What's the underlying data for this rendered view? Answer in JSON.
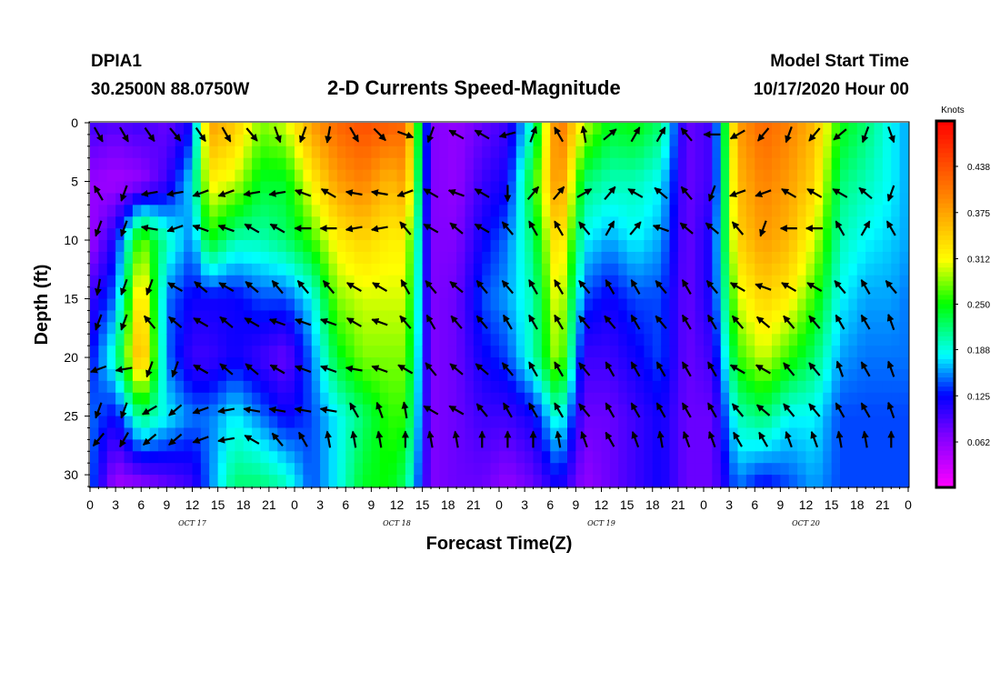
{
  "header": {
    "station_id": "DPIA1",
    "station_coords": "30.2500N 88.0750W",
    "title": "2-D Currents Speed-Magnitude",
    "model_label": "Model Start Time",
    "model_time": "10/17/2020 Hour 00"
  },
  "chart_data": {
    "type": "heatmap",
    "title": "2-D Currents Speed-Magnitude",
    "xlabel": "Forecast Time(Z)",
    "ylabel": "Depth (ft)",
    "x_tick_labels": [
      "0",
      "3",
      "6",
      "9",
      "12",
      "15",
      "18",
      "21",
      "0",
      "3",
      "6",
      "9",
      "12",
      "15",
      "18",
      "21",
      "0",
      "3",
      "6",
      "9",
      "12",
      "15",
      "18",
      "21",
      "0",
      "3",
      "6",
      "9",
      "12",
      "15",
      "18",
      "21",
      "0"
    ],
    "day_labels": [
      "OCT 17",
      "OCT 18",
      "OCT 19",
      "OCT 20"
    ],
    "xlim_hours": [
      0,
      96
    ],
    "y_tick_labels": [
      "0",
      "5",
      "10",
      "15",
      "20",
      "25",
      "30"
    ],
    "ylim": [
      0,
      31
    ],
    "y_inverted": true,
    "colorbar": {
      "unit": "Knots",
      "ticks": [
        "0.062",
        "0.125",
        "0.188",
        "0.250",
        "0.312",
        "0.375",
        "0.438"
      ],
      "range": [
        0,
        0.5
      ]
    },
    "speed_profiles_by_hour": [
      {
        "hour": 0,
        "speed": [
          0.1,
          0.06,
          0.05,
          0.1,
          0.12,
          0.15,
          0.15
        ]
      },
      {
        "hour": 3,
        "speed": [
          0.09,
          0.05,
          0.12,
          0.15,
          0.2,
          0.12,
          0.05
        ]
      },
      {
        "hour": 6,
        "speed": [
          0.1,
          0.06,
          0.28,
          0.35,
          0.38,
          0.22,
          0.06
        ]
      },
      {
        "hour": 9,
        "speed": [
          0.08,
          0.1,
          0.2,
          0.15,
          0.15,
          0.18,
          0.08
        ]
      },
      {
        "hour": 12,
        "speed": [
          0.12,
          0.18,
          0.15,
          0.12,
          0.1,
          0.15,
          0.1
        ]
      },
      {
        "hour": 14,
        "speed": [
          0.38,
          0.32,
          0.25,
          0.12,
          0.1,
          0.15,
          0.15
        ]
      },
      {
        "hour": 17,
        "speed": [
          0.35,
          0.3,
          0.2,
          0.12,
          0.12,
          0.18,
          0.22
        ]
      },
      {
        "hour": 20,
        "speed": [
          0.28,
          0.24,
          0.2,
          0.14,
          0.1,
          0.15,
          0.22
        ]
      },
      {
        "hour": 23,
        "speed": [
          0.3,
          0.24,
          0.22,
          0.14,
          0.08,
          0.12,
          0.2
        ]
      },
      {
        "hour": 26,
        "speed": [
          0.38,
          0.32,
          0.26,
          0.18,
          0.15,
          0.14,
          0.14
        ]
      },
      {
        "hour": 29,
        "speed": [
          0.42,
          0.38,
          0.32,
          0.28,
          0.24,
          0.18,
          0.18
        ]
      },
      {
        "hour": 32,
        "speed": [
          0.44,
          0.4,
          0.34,
          0.3,
          0.28,
          0.22,
          0.24
        ]
      },
      {
        "hour": 35,
        "speed": [
          0.43,
          0.36,
          0.32,
          0.3,
          0.28,
          0.26,
          0.25
        ]
      },
      {
        "hour": 37,
        "speed": [
          0.42,
          0.38,
          0.32,
          0.3,
          0.28,
          0.26,
          0.22
        ]
      },
      {
        "hour": 40,
        "speed": [
          0.07,
          0.07,
          0.07,
          0.07,
          0.07,
          0.07,
          0.07
        ]
      },
      {
        "hour": 43,
        "speed": [
          0.06,
          0.06,
          0.07,
          0.08,
          0.08,
          0.08,
          0.08
        ]
      },
      {
        "hour": 46,
        "speed": [
          0.08,
          0.1,
          0.12,
          0.14,
          0.12,
          0.1,
          0.08
        ]
      },
      {
        "hour": 49,
        "speed": [
          0.1,
          0.12,
          0.15,
          0.16,
          0.14,
          0.1,
          0.06
        ]
      },
      {
        "hour": 52,
        "speed": [
          0.2,
          0.25,
          0.22,
          0.2,
          0.2,
          0.12,
          0.08
        ]
      },
      {
        "hour": 55,
        "speed": [
          0.42,
          0.4,
          0.35,
          0.32,
          0.3,
          0.2,
          0.12
        ]
      },
      {
        "hour": 58,
        "speed": [
          0.3,
          0.22,
          0.18,
          0.14,
          0.1,
          0.08,
          0.06
        ]
      },
      {
        "hour": 61,
        "speed": [
          0.24,
          0.2,
          0.16,
          0.12,
          0.1,
          0.08,
          0.08
        ]
      },
      {
        "hour": 64,
        "speed": [
          0.25,
          0.2,
          0.18,
          0.14,
          0.12,
          0.1,
          0.1
        ]
      },
      {
        "hour": 67,
        "speed": [
          0.22,
          0.18,
          0.16,
          0.14,
          0.14,
          0.12,
          0.12
        ]
      },
      {
        "hour": 70,
        "speed": [
          0.08,
          0.08,
          0.08,
          0.08,
          0.08,
          0.08,
          0.08
        ]
      },
      {
        "hour": 73,
        "speed": [
          0.1,
          0.1,
          0.12,
          0.12,
          0.1,
          0.08,
          0.08
        ]
      },
      {
        "hour": 76,
        "speed": [
          0.38,
          0.36,
          0.34,
          0.3,
          0.26,
          0.2,
          0.15
        ]
      },
      {
        "hour": 79,
        "speed": [
          0.42,
          0.4,
          0.38,
          0.34,
          0.3,
          0.22,
          0.12
        ]
      },
      {
        "hour": 82,
        "speed": [
          0.4,
          0.38,
          0.36,
          0.32,
          0.26,
          0.18,
          0.14
        ]
      },
      {
        "hour": 85,
        "speed": [
          0.36,
          0.34,
          0.3,
          0.26,
          0.22,
          0.18,
          0.16
        ]
      },
      {
        "hour": 88,
        "speed": [
          0.25,
          0.22,
          0.2,
          0.18,
          0.16,
          0.14,
          0.14
        ]
      },
      {
        "hour": 91,
        "speed": [
          0.22,
          0.2,
          0.18,
          0.16,
          0.15,
          0.14,
          0.14
        ]
      },
      {
        "hour": 94,
        "speed": [
          0.18,
          0.18,
          0.17,
          0.16,
          0.15,
          0.14,
          0.14
        ]
      },
      {
        "hour": 96,
        "speed": [
          0.16,
          0.16,
          0.16,
          0.15,
          0.15,
          0.14,
          0.14
        ]
      }
    ],
    "profile_depths_ft": [
      0,
      5,
      10,
      15,
      20,
      25,
      31
    ],
    "vector_depths_ft": [
      1,
      6,
      9,
      14,
      17,
      21,
      24.5,
      27
    ],
    "vector_directions_deg": [
      [
        150,
        150,
        145,
        140,
        145,
        150,
        140,
        160,
        200,
        190,
        150,
        135,
        110,
        200,
        300,
        300,
        255,
        20,
        330,
        350,
        50,
        30,
        30,
        320,
        270,
        240,
        220,
        200,
        220,
        230,
        200,
        160
      ],
      [
        330,
        200,
        260,
        260,
        250,
        250,
        260,
        260,
        290,
        300,
        280,
        280,
        250,
        300,
        290,
        300,
        180,
        40,
        40,
        60,
        40,
        300,
        310,
        320,
        200,
        250,
        250,
        300,
        300,
        300,
        310,
        200
      ],
      [
        200,
        200,
        280,
        250,
        290,
        290,
        300,
        300,
        270,
        270,
        260,
        260,
        320,
        300,
        310,
        300,
        320,
        330,
        330,
        320,
        30,
        40,
        290,
        310,
        310,
        320,
        200,
        270,
        270,
        330,
        30,
        330
      ],
      [
        190,
        200,
        200,
        300,
        310,
        300,
        310,
        320,
        320,
        320,
        300,
        300,
        330,
        320,
        310,
        320,
        320,
        330,
        330,
        320,
        330,
        330,
        320,
        330,
        320,
        300,
        290,
        300,
        300,
        320,
        330,
        320
      ],
      [
        200,
        200,
        320,
        310,
        300,
        310,
        300,
        290,
        290,
        290,
        300,
        290,
        320,
        330,
        320,
        320,
        330,
        330,
        330,
        320,
        320,
        330,
        320,
        330,
        330,
        320,
        310,
        320,
        320,
        330,
        330,
        340
      ],
      [
        250,
        260,
        200,
        200,
        300,
        310,
        310,
        300,
        290,
        290,
        280,
        290,
        300,
        320,
        310,
        310,
        320,
        330,
        330,
        320,
        330,
        330,
        330,
        330,
        330,
        300,
        300,
        320,
        320,
        340,
        330,
        340
      ],
      [
        200,
        200,
        240,
        230,
        250,
        260,
        280,
        280,
        280,
        280,
        330,
        340,
        350,
        300,
        300,
        320,
        330,
        330,
        330,
        320,
        330,
        330,
        330,
        330,
        330,
        320,
        310,
        320,
        320,
        330,
        330,
        340
      ],
      [
        220,
        210,
        230,
        230,
        250,
        260,
        300,
        320,
        330,
        350,
        350,
        350,
        0,
        350,
        350,
        0,
        0,
        0,
        350,
        340,
        330,
        340,
        350,
        340,
        340,
        330,
        330,
        340,
        340,
        350,
        350,
        0
      ]
    ]
  }
}
